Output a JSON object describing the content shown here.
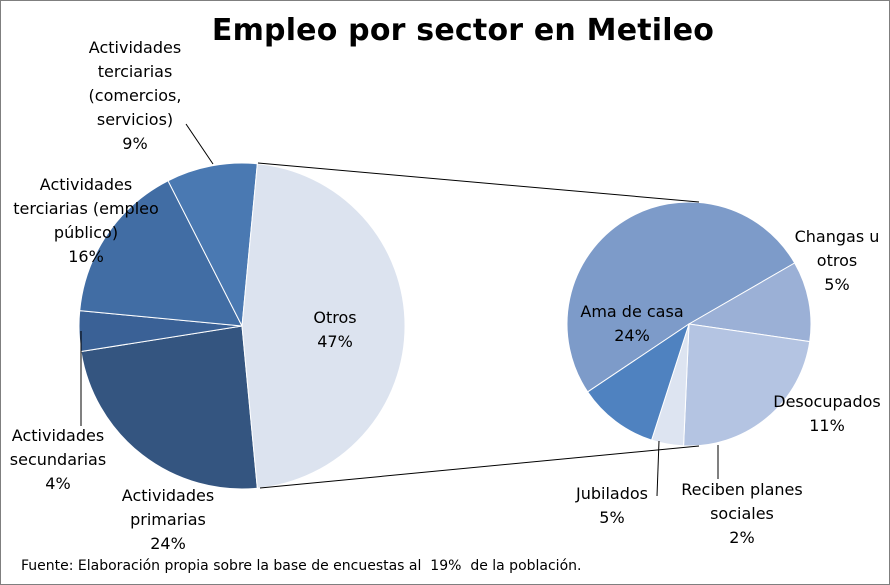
{
  "chart_data": {
    "type": "pie",
    "title": "Empleo por sector en Metileo",
    "main_pie": [
      {
        "label": [
          "Actividades",
          "terciarias",
          "(comercios,",
          "servicios)"
        ],
        "value": 9,
        "pct": "9%",
        "color": "#4a79b2"
      },
      {
        "label": [
          "Actividades",
          "terciarias (empleo",
          "público)"
        ],
        "value": 16,
        "pct": "16%",
        "color": "#416da4"
      },
      {
        "label": [
          "Actividades",
          "secundarias"
        ],
        "value": 4,
        "pct": "4%",
        "color": "#3a6196"
      },
      {
        "label": [
          "Actividades",
          "primarias"
        ],
        "value": 24,
        "pct": "24%",
        "color": "#345580"
      },
      {
        "label": [
          "Otros"
        ],
        "value": 47,
        "pct": "47%",
        "color": "#dce3ef",
        "exploded_into_secondary": true
      }
    ],
    "secondary_pie": [
      {
        "label": [
          "Ama de casa"
        ],
        "value": 24,
        "pct": "24%",
        "color": "#7d9bc9"
      },
      {
        "label": [
          "Changas u",
          "otros"
        ],
        "value": 5,
        "pct": "5%",
        "color": "#9bb0d6"
      },
      {
        "label": [
          "Desocupados"
        ],
        "value": 11,
        "pct": "11%",
        "color": "#b4c4e2"
      },
      {
        "label": [
          "Reciben planes",
          "sociales"
        ],
        "value": 2,
        "pct": "2%",
        "color": "#dde4f1"
      },
      {
        "label": [
          "Jubilados"
        ],
        "value": 5,
        "pct": "5%",
        "color": "#4f82c0"
      }
    ]
  },
  "source_note": "Fuente: Elaboración propia sobre la base de encuestas al  19%  de la población."
}
